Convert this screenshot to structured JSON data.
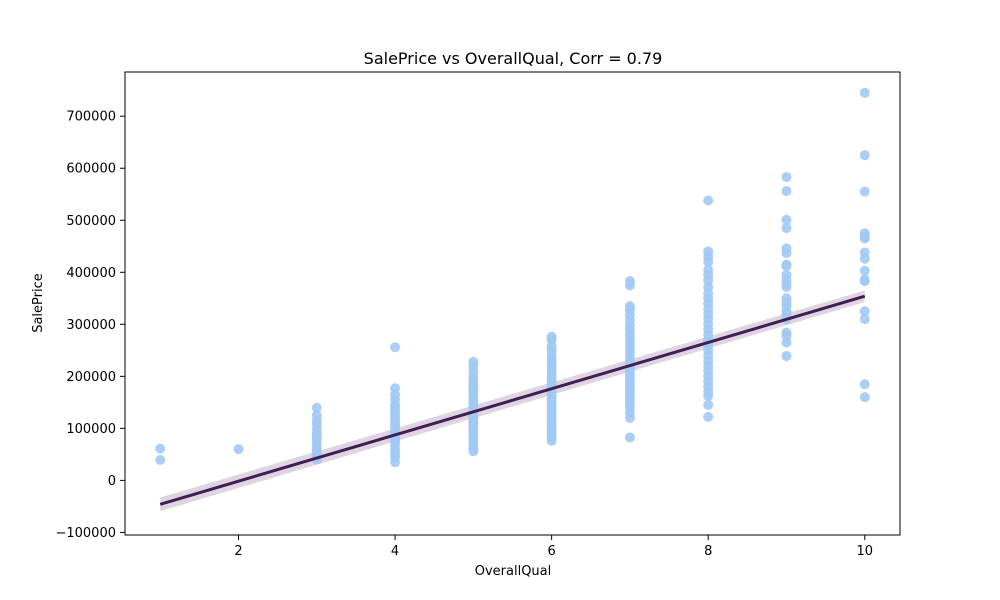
{
  "chart_data": {
    "type": "scatter",
    "title": "SalePrice vs OverallQual, Corr = 0.79",
    "xlabel": "OverallQual",
    "ylabel": "SalePrice",
    "xlim": [
      0.55,
      10.45
    ],
    "ylim": [
      -105000,
      785000
    ],
    "xticks": [
      2,
      4,
      6,
      8,
      10
    ],
    "yticks": [
      -100000,
      0,
      100000,
      200000,
      300000,
      400000,
      500000,
      600000,
      700000
    ],
    "grid": false,
    "point_color": "#a1c9f4",
    "line_color": "#3f1f52",
    "band_color": "#d7c9da",
    "regression": {
      "x_start": 1,
      "y_start": -46000,
      "x_end": 10,
      "y_end": 354000,
      "band_halfwidth": 11000
    },
    "points": [
      {
        "x": 1,
        "y": 61000
      },
      {
        "x": 1,
        "y": 39300
      },
      {
        "x": 2,
        "y": 60000
      },
      {
        "x": 3,
        "y": 139600
      },
      {
        "x": 3,
        "y": 125000
      },
      {
        "x": 3,
        "y": 115000
      },
      {
        "x": 3,
        "y": 108000
      },
      {
        "x": 3,
        "y": 98000
      },
      {
        "x": 3,
        "y": 90000
      },
      {
        "x": 3,
        "y": 85000
      },
      {
        "x": 3,
        "y": 80000
      },
      {
        "x": 3,
        "y": 75000
      },
      {
        "x": 3,
        "y": 68000
      },
      {
        "x": 3,
        "y": 60000
      },
      {
        "x": 3,
        "y": 55000
      },
      {
        "x": 3,
        "y": 50000
      },
      {
        "x": 3,
        "y": 45000
      },
      {
        "x": 3,
        "y": 40000
      },
      {
        "x": 4,
        "y": 256000
      },
      {
        "x": 4,
        "y": 177000
      },
      {
        "x": 4,
        "y": 165000
      },
      {
        "x": 4,
        "y": 155000
      },
      {
        "x": 4,
        "y": 145000
      },
      {
        "x": 4,
        "y": 138000
      },
      {
        "x": 4,
        "y": 130000
      },
      {
        "x": 4,
        "y": 124000
      },
      {
        "x": 4,
        "y": 118000
      },
      {
        "x": 4,
        "y": 112000
      },
      {
        "x": 4,
        "y": 106000
      },
      {
        "x": 4,
        "y": 100000
      },
      {
        "x": 4,
        "y": 95000
      },
      {
        "x": 4,
        "y": 90000
      },
      {
        "x": 4,
        "y": 85000
      },
      {
        "x": 4,
        "y": 80000
      },
      {
        "x": 4,
        "y": 75000
      },
      {
        "x": 4,
        "y": 68000
      },
      {
        "x": 4,
        "y": 60000
      },
      {
        "x": 4,
        "y": 52000
      },
      {
        "x": 4,
        "y": 45000
      },
      {
        "x": 4,
        "y": 35000
      },
      {
        "x": 5,
        "y": 228000
      },
      {
        "x": 5,
        "y": 220000
      },
      {
        "x": 5,
        "y": 210000
      },
      {
        "x": 5,
        "y": 200000
      },
      {
        "x": 5,
        "y": 192000
      },
      {
        "x": 5,
        "y": 185000
      },
      {
        "x": 5,
        "y": 178000
      },
      {
        "x": 5,
        "y": 171000
      },
      {
        "x": 5,
        "y": 164000
      },
      {
        "x": 5,
        "y": 157000
      },
      {
        "x": 5,
        "y": 150000
      },
      {
        "x": 5,
        "y": 143000
      },
      {
        "x": 5,
        "y": 137000
      },
      {
        "x": 5,
        "y": 131000
      },
      {
        "x": 5,
        "y": 125000
      },
      {
        "x": 5,
        "y": 119000
      },
      {
        "x": 5,
        "y": 113000
      },
      {
        "x": 5,
        "y": 107000
      },
      {
        "x": 5,
        "y": 100000
      },
      {
        "x": 5,
        "y": 93000
      },
      {
        "x": 5,
        "y": 86000
      },
      {
        "x": 5,
        "y": 78000
      },
      {
        "x": 5,
        "y": 70000
      },
      {
        "x": 5,
        "y": 62000
      },
      {
        "x": 5,
        "y": 56000
      },
      {
        "x": 6,
        "y": 276000
      },
      {
        "x": 6,
        "y": 270000
      },
      {
        "x": 6,
        "y": 258000
      },
      {
        "x": 6,
        "y": 250000
      },
      {
        "x": 6,
        "y": 240000
      },
      {
        "x": 6,
        "y": 232000
      },
      {
        "x": 6,
        "y": 224000
      },
      {
        "x": 6,
        "y": 216000
      },
      {
        "x": 6,
        "y": 208000
      },
      {
        "x": 6,
        "y": 200000
      },
      {
        "x": 6,
        "y": 193000
      },
      {
        "x": 6,
        "y": 186000
      },
      {
        "x": 6,
        "y": 179000
      },
      {
        "x": 6,
        "y": 172000
      },
      {
        "x": 6,
        "y": 165000
      },
      {
        "x": 6,
        "y": 158000
      },
      {
        "x": 6,
        "y": 151000
      },
      {
        "x": 6,
        "y": 144000
      },
      {
        "x": 6,
        "y": 137000
      },
      {
        "x": 6,
        "y": 130000
      },
      {
        "x": 6,
        "y": 123000
      },
      {
        "x": 6,
        "y": 116000
      },
      {
        "x": 6,
        "y": 109000
      },
      {
        "x": 6,
        "y": 102000
      },
      {
        "x": 6,
        "y": 95000
      },
      {
        "x": 6,
        "y": 88000
      },
      {
        "x": 6,
        "y": 81000
      },
      {
        "x": 6,
        "y": 76000
      },
      {
        "x": 7,
        "y": 383000
      },
      {
        "x": 7,
        "y": 375000
      },
      {
        "x": 7,
        "y": 335000
      },
      {
        "x": 7,
        "y": 328000
      },
      {
        "x": 7,
        "y": 318000
      },
      {
        "x": 7,
        "y": 308000
      },
      {
        "x": 7,
        "y": 298000
      },
      {
        "x": 7,
        "y": 290000
      },
      {
        "x": 7,
        "y": 281000
      },
      {
        "x": 7,
        "y": 272000
      },
      {
        "x": 7,
        "y": 264000
      },
      {
        "x": 7,
        "y": 256000
      },
      {
        "x": 7,
        "y": 248000
      },
      {
        "x": 7,
        "y": 240000
      },
      {
        "x": 7,
        "y": 232000
      },
      {
        "x": 7,
        "y": 225000
      },
      {
        "x": 7,
        "y": 218000
      },
      {
        "x": 7,
        "y": 211000
      },
      {
        "x": 7,
        "y": 204000
      },
      {
        "x": 7,
        "y": 197000
      },
      {
        "x": 7,
        "y": 190000
      },
      {
        "x": 7,
        "y": 183000
      },
      {
        "x": 7,
        "y": 176000
      },
      {
        "x": 7,
        "y": 169000
      },
      {
        "x": 7,
        "y": 162000
      },
      {
        "x": 7,
        "y": 155000
      },
      {
        "x": 7,
        "y": 148000
      },
      {
        "x": 7,
        "y": 140000
      },
      {
        "x": 7,
        "y": 130000
      },
      {
        "x": 7,
        "y": 120000
      },
      {
        "x": 7,
        "y": 82500
      },
      {
        "x": 8,
        "y": 538000
      },
      {
        "x": 8,
        "y": 440000
      },
      {
        "x": 8,
        "y": 430000
      },
      {
        "x": 8,
        "y": 420000
      },
      {
        "x": 8,
        "y": 405000
      },
      {
        "x": 8,
        "y": 395000
      },
      {
        "x": 8,
        "y": 385000
      },
      {
        "x": 8,
        "y": 372000
      },
      {
        "x": 8,
        "y": 360000
      },
      {
        "x": 8,
        "y": 350000
      },
      {
        "x": 8,
        "y": 340000
      },
      {
        "x": 8,
        "y": 330000
      },
      {
        "x": 8,
        "y": 320000
      },
      {
        "x": 8,
        "y": 310000
      },
      {
        "x": 8,
        "y": 300000
      },
      {
        "x": 8,
        "y": 290000
      },
      {
        "x": 8,
        "y": 280000
      },
      {
        "x": 8,
        "y": 270000
      },
      {
        "x": 8,
        "y": 260000
      },
      {
        "x": 8,
        "y": 250000
      },
      {
        "x": 8,
        "y": 240000
      },
      {
        "x": 8,
        "y": 230000
      },
      {
        "x": 8,
        "y": 220000
      },
      {
        "x": 8,
        "y": 210000
      },
      {
        "x": 8,
        "y": 200000
      },
      {
        "x": 8,
        "y": 190000
      },
      {
        "x": 8,
        "y": 180000
      },
      {
        "x": 8,
        "y": 170000
      },
      {
        "x": 8,
        "y": 162000
      },
      {
        "x": 8,
        "y": 145000
      },
      {
        "x": 8,
        "y": 122000
      },
      {
        "x": 9,
        "y": 583000
      },
      {
        "x": 9,
        "y": 556000
      },
      {
        "x": 9,
        "y": 501000
      },
      {
        "x": 9,
        "y": 485000
      },
      {
        "x": 9,
        "y": 446000
      },
      {
        "x": 9,
        "y": 437000
      },
      {
        "x": 9,
        "y": 415000
      },
      {
        "x": 9,
        "y": 412000
      },
      {
        "x": 9,
        "y": 395000
      },
      {
        "x": 9,
        "y": 385000
      },
      {
        "x": 9,
        "y": 378000
      },
      {
        "x": 9,
        "y": 372000
      },
      {
        "x": 9,
        "y": 350000
      },
      {
        "x": 9,
        "y": 342000
      },
      {
        "x": 9,
        "y": 335000
      },
      {
        "x": 9,
        "y": 325000
      },
      {
        "x": 9,
        "y": 318000
      },
      {
        "x": 9,
        "y": 310000
      },
      {
        "x": 9,
        "y": 284000
      },
      {
        "x": 9,
        "y": 278000
      },
      {
        "x": 9,
        "y": 265000
      },
      {
        "x": 9,
        "y": 239000
      },
      {
        "x": 10,
        "y": 745000
      },
      {
        "x": 10,
        "y": 625000
      },
      {
        "x": 10,
        "y": 555000
      },
      {
        "x": 10,
        "y": 475000
      },
      {
        "x": 10,
        "y": 468000
      },
      {
        "x": 10,
        "y": 465000
      },
      {
        "x": 10,
        "y": 438000
      },
      {
        "x": 10,
        "y": 426000
      },
      {
        "x": 10,
        "y": 403000
      },
      {
        "x": 10,
        "y": 386000
      },
      {
        "x": 10,
        "y": 383000
      },
      {
        "x": 10,
        "y": 325000
      },
      {
        "x": 10,
        "y": 310000
      },
      {
        "x": 10,
        "y": 184750
      },
      {
        "x": 10,
        "y": 160000
      }
    ]
  }
}
